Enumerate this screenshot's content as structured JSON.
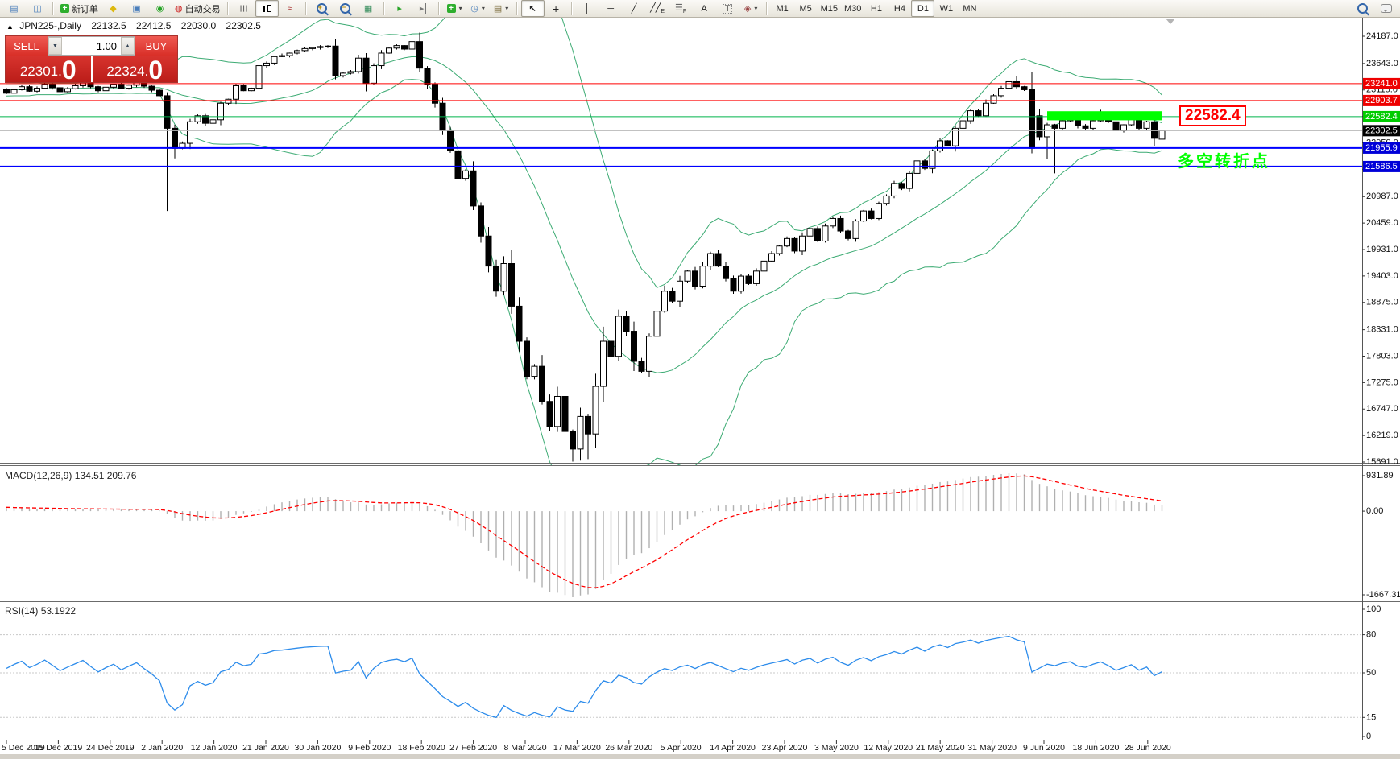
{
  "toolbar": {
    "new_order_label": "新订单",
    "autotrading_label": "自动交易",
    "timeframes": [
      "M1",
      "M5",
      "M15",
      "M30",
      "H1",
      "H4",
      "D1",
      "W1",
      "MN"
    ],
    "active_timeframe": "D1"
  },
  "chart_title": {
    "symbol_period": "JPN225-,Daily",
    "open": "22132.5",
    "high": "22412.5",
    "low": "22030.0",
    "close": "22302.5"
  },
  "trade_panel": {
    "sell_label": "SELL",
    "buy_label": "BUY",
    "volume": "1.00",
    "sell_price_main": "22301",
    "sell_price_dot": ".",
    "sell_price_big": "0",
    "buy_price_main": "22324",
    "buy_price_dot": ".",
    "buy_price_big": "0"
  },
  "indicator_labels": {
    "macd": "MACD(12,26,9)",
    "macd_values": "134.51 209.76",
    "rsi": "RSI(14)",
    "rsi_value": "53.1922"
  },
  "annotations": {
    "level_label": "22582.4",
    "turning_point": "多空转折点"
  },
  "chart_data": {
    "type": "candlestick",
    "symbol": "JPN225-",
    "period": "Daily",
    "bid": "22301.0",
    "ask": "22324.0",
    "current_price": 22302.5,
    "price_axis_ticks": [
      "24187.0",
      "23643.0",
      "23115.0",
      "22587.0",
      "22059.0",
      "21531.0",
      "20987.0",
      "20459.0",
      "19931.0",
      "19403.0",
      "18875.0",
      "18331.0",
      "17803.0",
      "17275.0",
      "16747.0",
      "16219.0",
      "15691.0"
    ],
    "price_axis_max": 24187.0,
    "price_axis_min": 15691.0,
    "date_labels": [
      "5 Dec 2019",
      "15 Dec 2019",
      "24 Dec 2019",
      "2 Jan 2020",
      "12 Jan 2020",
      "21 Jan 2020",
      "30 Jan 2020",
      "9 Feb 2020",
      "18 Feb 2020",
      "27 Feb 2020",
      "8 Mar 2020",
      "17 Mar 2020",
      "26 Mar 2020",
      "5 Apr 2020",
      "14 Apr 2020",
      "23 Apr 2020",
      "3 May 2020",
      "12 May 2020",
      "21 May 2020",
      "31 May 2020",
      "9 Jun 2020",
      "18 Jun 2020",
      "28 Jun 2020"
    ],
    "horizontal_levels": [
      {
        "price": 23241.0,
        "line_color": "#ff0000",
        "line_width": 1,
        "badge": "23241.0",
        "badge_bg": "#ee0000"
      },
      {
        "price": 22903.7,
        "line_color": "#ff0000",
        "line_width": 1,
        "badge": "22903.7",
        "badge_bg": "#ee0000"
      },
      {
        "price": 22582.4,
        "line_color": "#00b44b",
        "line_width": 1,
        "badge": "22582.4",
        "badge_bg": "#00cc00"
      },
      {
        "price": 22302.5,
        "line_color": "#b8b8b8",
        "line_width": 1,
        "badge": "22302.5",
        "badge_bg": "#000000",
        "role": "current-price"
      },
      {
        "price": 21955.9,
        "line_color": "#0000ff",
        "line_width": 2,
        "badge": "21955.9",
        "badge_bg": "#0000d8"
      },
      {
        "price": 21586.5,
        "line_color": "#0000ff",
        "line_width": 2,
        "badge": "21586.5",
        "badge_bg": "#0000d8"
      }
    ],
    "rectangle": {
      "from_bar": 136,
      "to_bar": 151,
      "price_top": 22690,
      "price_bottom": 22510,
      "color": "#00ff00"
    },
    "closes": [
      23050,
      23120,
      23180,
      23090,
      23150,
      23230,
      23160,
      23080,
      23140,
      23200,
      23260,
      23180,
      23100,
      23170,
      23230,
      23150,
      23210,
      23270,
      23190,
      23110,
      23000,
      22350,
      21950,
      22050,
      22480,
      22600,
      22450,
      22520,
      22850,
      22930,
      23200,
      23100,
      23150,
      23600,
      23650,
      23780,
      23800,
      23850,
      23900,
      23940,
      23960,
      23980,
      23990,
      23400,
      23450,
      23480,
      23750,
      23250,
      23600,
      23850,
      23950,
      24000,
      23930,
      24080,
      23550,
      23230,
      22850,
      22300,
      21900,
      21350,
      21500,
      20800,
      20200,
      19600,
      19100,
      19650,
      18800,
      18100,
      17400,
      17600,
      16900,
      16400,
      17000,
      16300,
      15950,
      16600,
      16250,
      17200,
      18100,
      17800,
      18600,
      18300,
      17700,
      17500,
      18200,
      18700,
      19100,
      18900,
      19300,
      19500,
      19200,
      19600,
      19850,
      19600,
      19350,
      19100,
      19400,
      19250,
      19500,
      19700,
      19850,
      20000,
      20150,
      19900,
      20200,
      20350,
      20100,
      20400,
      20550,
      20300,
      20150,
      20500,
      20700,
      20550,
      20850,
      21000,
      21250,
      21150,
      21450,
      21700,
      21550,
      21900,
      22100,
      22000,
      22350,
      22500,
      22700,
      22600,
      22850,
      23000,
      23150,
      23280,
      23180,
      23120,
      21950,
      22180,
      22420,
      22350,
      22500,
      22580,
      22400,
      22350,
      22500,
      22620,
      22480,
      22300,
      22420,
      22550,
      22350,
      22480,
      22150,
      22302.5
    ],
    "warmup_closes": [
      22750,
      22820,
      22900,
      22980,
      23050,
      22970,
      23060,
      23140,
      23080,
      23000,
      23090,
      23160,
      23100,
      23020,
      23110,
      23180,
      23120,
      23060,
      23150,
      23220,
      23160,
      23100,
      23190,
      23240,
      23120
    ],
    "bar_overrides": {
      "21": {
        "low": 20700
      },
      "22": {
        "low": 21750
      },
      "53": {
        "high": 24115
      },
      "74": {
        "low": 15700
      },
      "75": {
        "low": 15720
      },
      "76": {
        "low": 15750
      },
      "131": {
        "high": 23440
      },
      "132": {
        "high": 23400
      },
      "134": {
        "low": 21850
      },
      "135": {
        "open": 22600
      },
      "136": {
        "low": 21745
      },
      "137": {
        "low": 21450
      },
      "143": {
        "high": 22720
      },
      "150": {
        "low": 21990
      },
      "151": {
        "open": 22132.5,
        "high": 22412.5,
        "low": 22030.0,
        "close": 22302.5
      }
    },
    "indicators": {
      "bollinger": {
        "period": 20,
        "deviation": 2,
        "color": "#3cab73"
      },
      "macd": {
        "fast": 12,
        "slow": 26,
        "signal": 9,
        "current_main": 134.51,
        "current_signal": 209.76,
        "axis_ticks": [
          "931.89",
          "0.00",
          "-1667.31"
        ],
        "histogram_color": "#b0b0b0",
        "signal_color": "#ff0000"
      },
      "rsi": {
        "period": 14,
        "current": 53.1922,
        "axis_ticks": [
          "100",
          "80",
          "50",
          "15",
          "0"
        ],
        "levels": [
          80,
          50,
          15
        ],
        "color": "#2d8ceb"
      }
    }
  }
}
